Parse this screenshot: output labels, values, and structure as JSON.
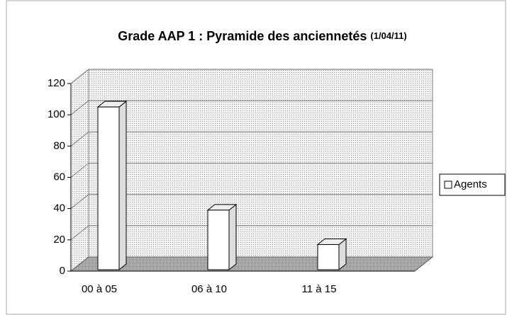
{
  "chart_data": {
    "type": "bar3d",
    "title": "Grade AAP 1 : Pyramide des anciennetés",
    "subtitle": "(1/04/11)",
    "categories": [
      "00 à 05",
      "06 à 10",
      "11 à 15"
    ],
    "series": [
      {
        "name": "Agents",
        "color": "#ffffff",
        "values": [
          105,
          39,
          17
        ]
      }
    ],
    "ylim": [
      0,
      120
    ],
    "yticks": [
      0,
      20,
      40,
      60,
      80,
      100,
      120
    ],
    "grid": true,
    "legend": "right"
  }
}
